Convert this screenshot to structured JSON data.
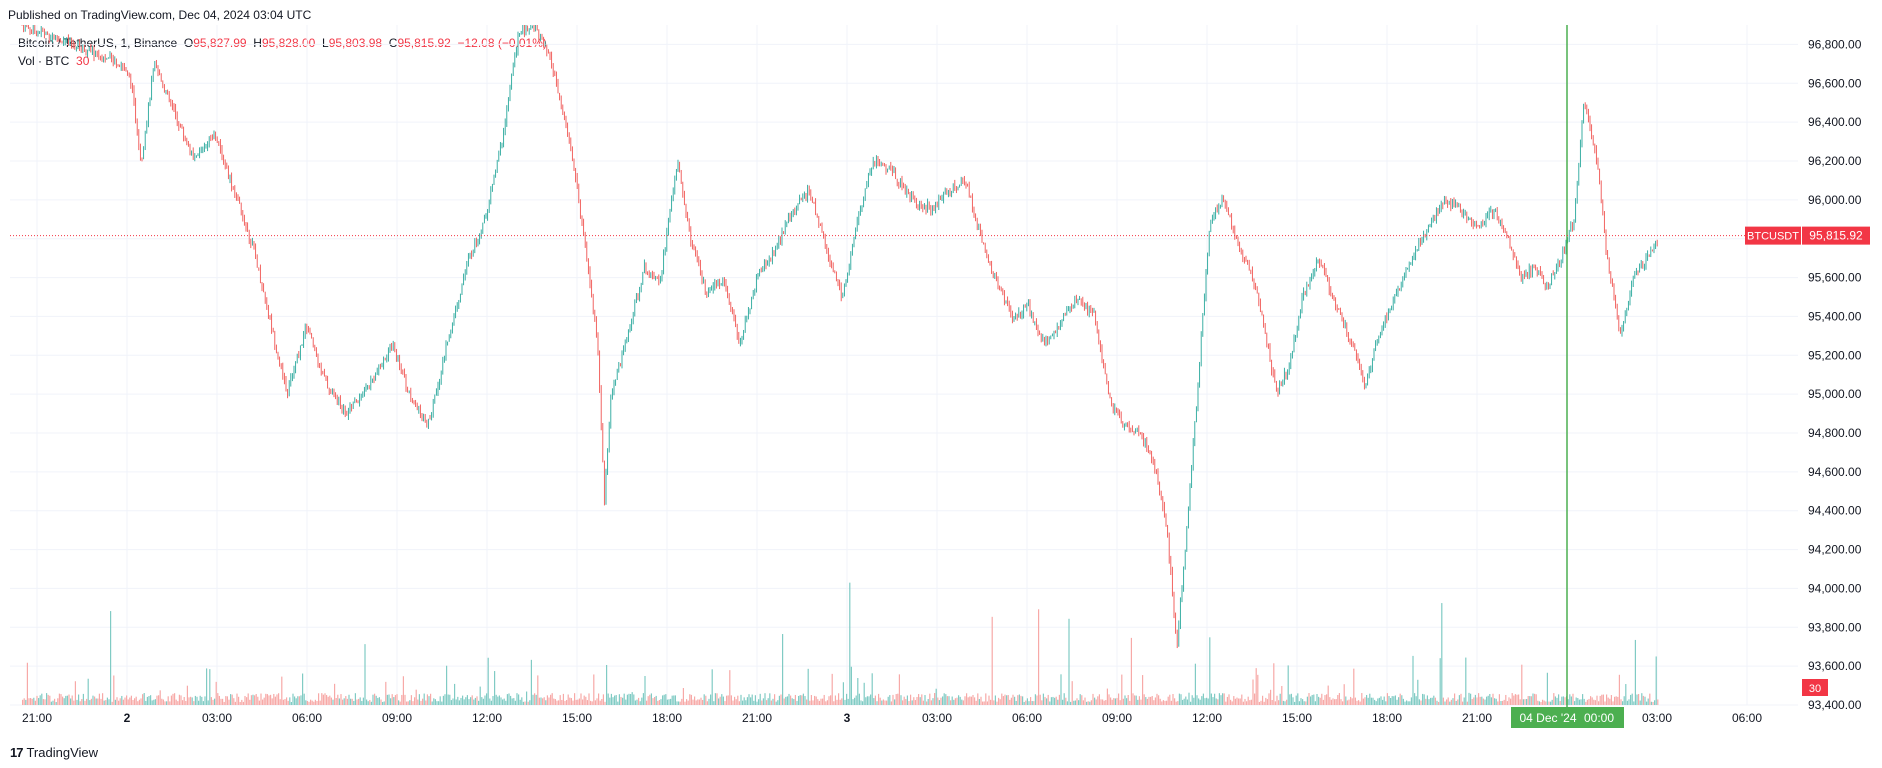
{
  "published": "Published on TradingView.com, Dec 04, 2024 03:04 UTC",
  "legend": {
    "symbol": "Bitcoin / TetherUS, 1, Binance",
    "o_label": "O",
    "o": "95,827.99",
    "h_label": "H",
    "h": "95,828.00",
    "l_label": "L",
    "l": "95,803.98",
    "c_label": "C",
    "c": "95,815.92",
    "change": "−12.08 (−0.01%)",
    "vol_label": "Vol · BTC",
    "vol_value": "30"
  },
  "price_tag": {
    "ticker": "BTCUSDT",
    "value": "95,815.92"
  },
  "volume_tag": "30",
  "crosshair_label": {
    "date": "04 Dec '24",
    "time": "00:00"
  },
  "footer": {
    "logo": "17",
    "brand": "TradingView"
  },
  "colors": {
    "up": "#26a69a",
    "down": "#ef5350",
    "crosshair": "#4caf50",
    "price_line": "#f23645",
    "grid": "#f0f3fa"
  },
  "chart_data": {
    "type": "candlestick",
    "title": "Bitcoin / TetherUS, 1, Binance",
    "ylim": [
      93400,
      96900
    ],
    "y_ticks": [
      "96,800.00",
      "96,600.00",
      "96,400.00",
      "96,200.00",
      "96,000.00",
      "95,800.00",
      "95,600.00",
      "95,400.00",
      "95,200.00",
      "95,000.00",
      "94,800.00",
      "94,600.00",
      "94,400.00",
      "94,200.00",
      "94,000.00",
      "93,800.00",
      "93,600.00",
      "93,400.00"
    ],
    "x_ticks": [
      "21:00",
      "2",
      "03:00",
      "06:00",
      "09:00",
      "12:00",
      "15:00",
      "18:00",
      "21:00",
      "3",
      "03:00",
      "06:00",
      "09:00",
      "12:00",
      "15:00",
      "18:00",
      "21:00",
      "00:00",
      "03:00",
      "06:00"
    ],
    "price_path": [
      [
        0,
        96900
      ],
      [
        3,
        96700
      ],
      [
        3.3,
        96600
      ],
      [
        3.6,
        96200
      ],
      [
        4.0,
        96700
      ],
      [
        4.6,
        96450
      ],
      [
        5.2,
        96200
      ],
      [
        5.8,
        96350
      ],
      [
        6.4,
        96050
      ],
      [
        7.0,
        95750
      ],
      [
        7.6,
        95300
      ],
      [
        8.0,
        95000
      ],
      [
        8.6,
        95350
      ],
      [
        9.2,
        95050
      ],
      [
        9.8,
        94900
      ],
      [
        10.5,
        95050
      ],
      [
        11.2,
        95250
      ],
      [
        11.8,
        94950
      ],
      [
        12.3,
        94850
      ],
      [
        12.9,
        95300
      ],
      [
        13.5,
        95700
      ],
      [
        14.0,
        95900
      ],
      [
        14.5,
        96300
      ],
      [
        15.0,
        96850
      ],
      [
        15.5,
        96900
      ],
      [
        16.0,
        96700
      ],
      [
        16.6,
        96250
      ],
      [
        17.0,
        95800
      ],
      [
        17.4,
        95250
      ],
      [
        17.6,
        94450
      ],
      [
        17.8,
        95000
      ],
      [
        18.3,
        95300
      ],
      [
        18.8,
        95650
      ],
      [
        19.3,
        95600
      ],
      [
        19.8,
        96200
      ],
      [
        20.2,
        95800
      ],
      [
        20.7,
        95500
      ],
      [
        21.2,
        95600
      ],
      [
        21.7,
        95250
      ],
      [
        22.2,
        95600
      ],
      [
        22.8,
        95750
      ],
      [
        23.3,
        95950
      ],
      [
        23.8,
        96050
      ],
      [
        24.3,
        95750
      ],
      [
        24.8,
        95500
      ],
      [
        25.2,
        95850
      ],
      [
        25.7,
        96200
      ],
      [
        26.3,
        96150
      ],
      [
        26.9,
        96000
      ],
      [
        27.5,
        95950
      ],
      [
        28.0,
        96050
      ],
      [
        28.5,
        96100
      ],
      [
        29.0,
        95800
      ],
      [
        29.4,
        95600
      ],
      [
        29.9,
        95400
      ],
      [
        30.4,
        95450
      ],
      [
        30.9,
        95250
      ],
      [
        31.5,
        95400
      ],
      [
        31.9,
        95500
      ],
      [
        32.4,
        95400
      ],
      [
        32.9,
        94950
      ],
      [
        33.3,
        94850
      ],
      [
        33.8,
        94800
      ],
      [
        34.2,
        94650
      ],
      [
        34.6,
        94300
      ],
      [
        34.9,
        93700
      ],
      [
        35.2,
        94300
      ],
      [
        35.6,
        95200
      ],
      [
        35.9,
        95900
      ],
      [
        36.3,
        96000
      ],
      [
        36.7,
        95800
      ],
      [
        37.2,
        95600
      ],
      [
        37.6,
        95300
      ],
      [
        37.9,
        95000
      ],
      [
        38.3,
        95150
      ],
      [
        38.7,
        95500
      ],
      [
        39.2,
        95700
      ],
      [
        39.6,
        95500
      ],
      [
        40.1,
        95300
      ],
      [
        40.6,
        95050
      ],
      [
        41.0,
        95300
      ],
      [
        41.5,
        95500
      ],
      [
        42.0,
        95700
      ],
      [
        42.5,
        95850
      ],
      [
        43.0,
        96000
      ],
      [
        43.5,
        95950
      ],
      [
        44.0,
        95850
      ],
      [
        44.5,
        95950
      ],
      [
        44.9,
        95800
      ],
      [
        45.3,
        95600
      ],
      [
        45.7,
        95650
      ],
      [
        46.1,
        95550
      ],
      [
        46.5,
        95700
      ],
      [
        46.9,
        95900
      ],
      [
        47.2,
        96500
      ],
      [
        47.6,
        96200
      ],
      [
        47.9,
        95700
      ],
      [
        48.3,
        95300
      ],
      [
        48.7,
        95600
      ],
      [
        49.1,
        95700
      ],
      [
        49.5,
        95816
      ]
    ],
    "price_domain": [
      0,
      52
    ]
  }
}
